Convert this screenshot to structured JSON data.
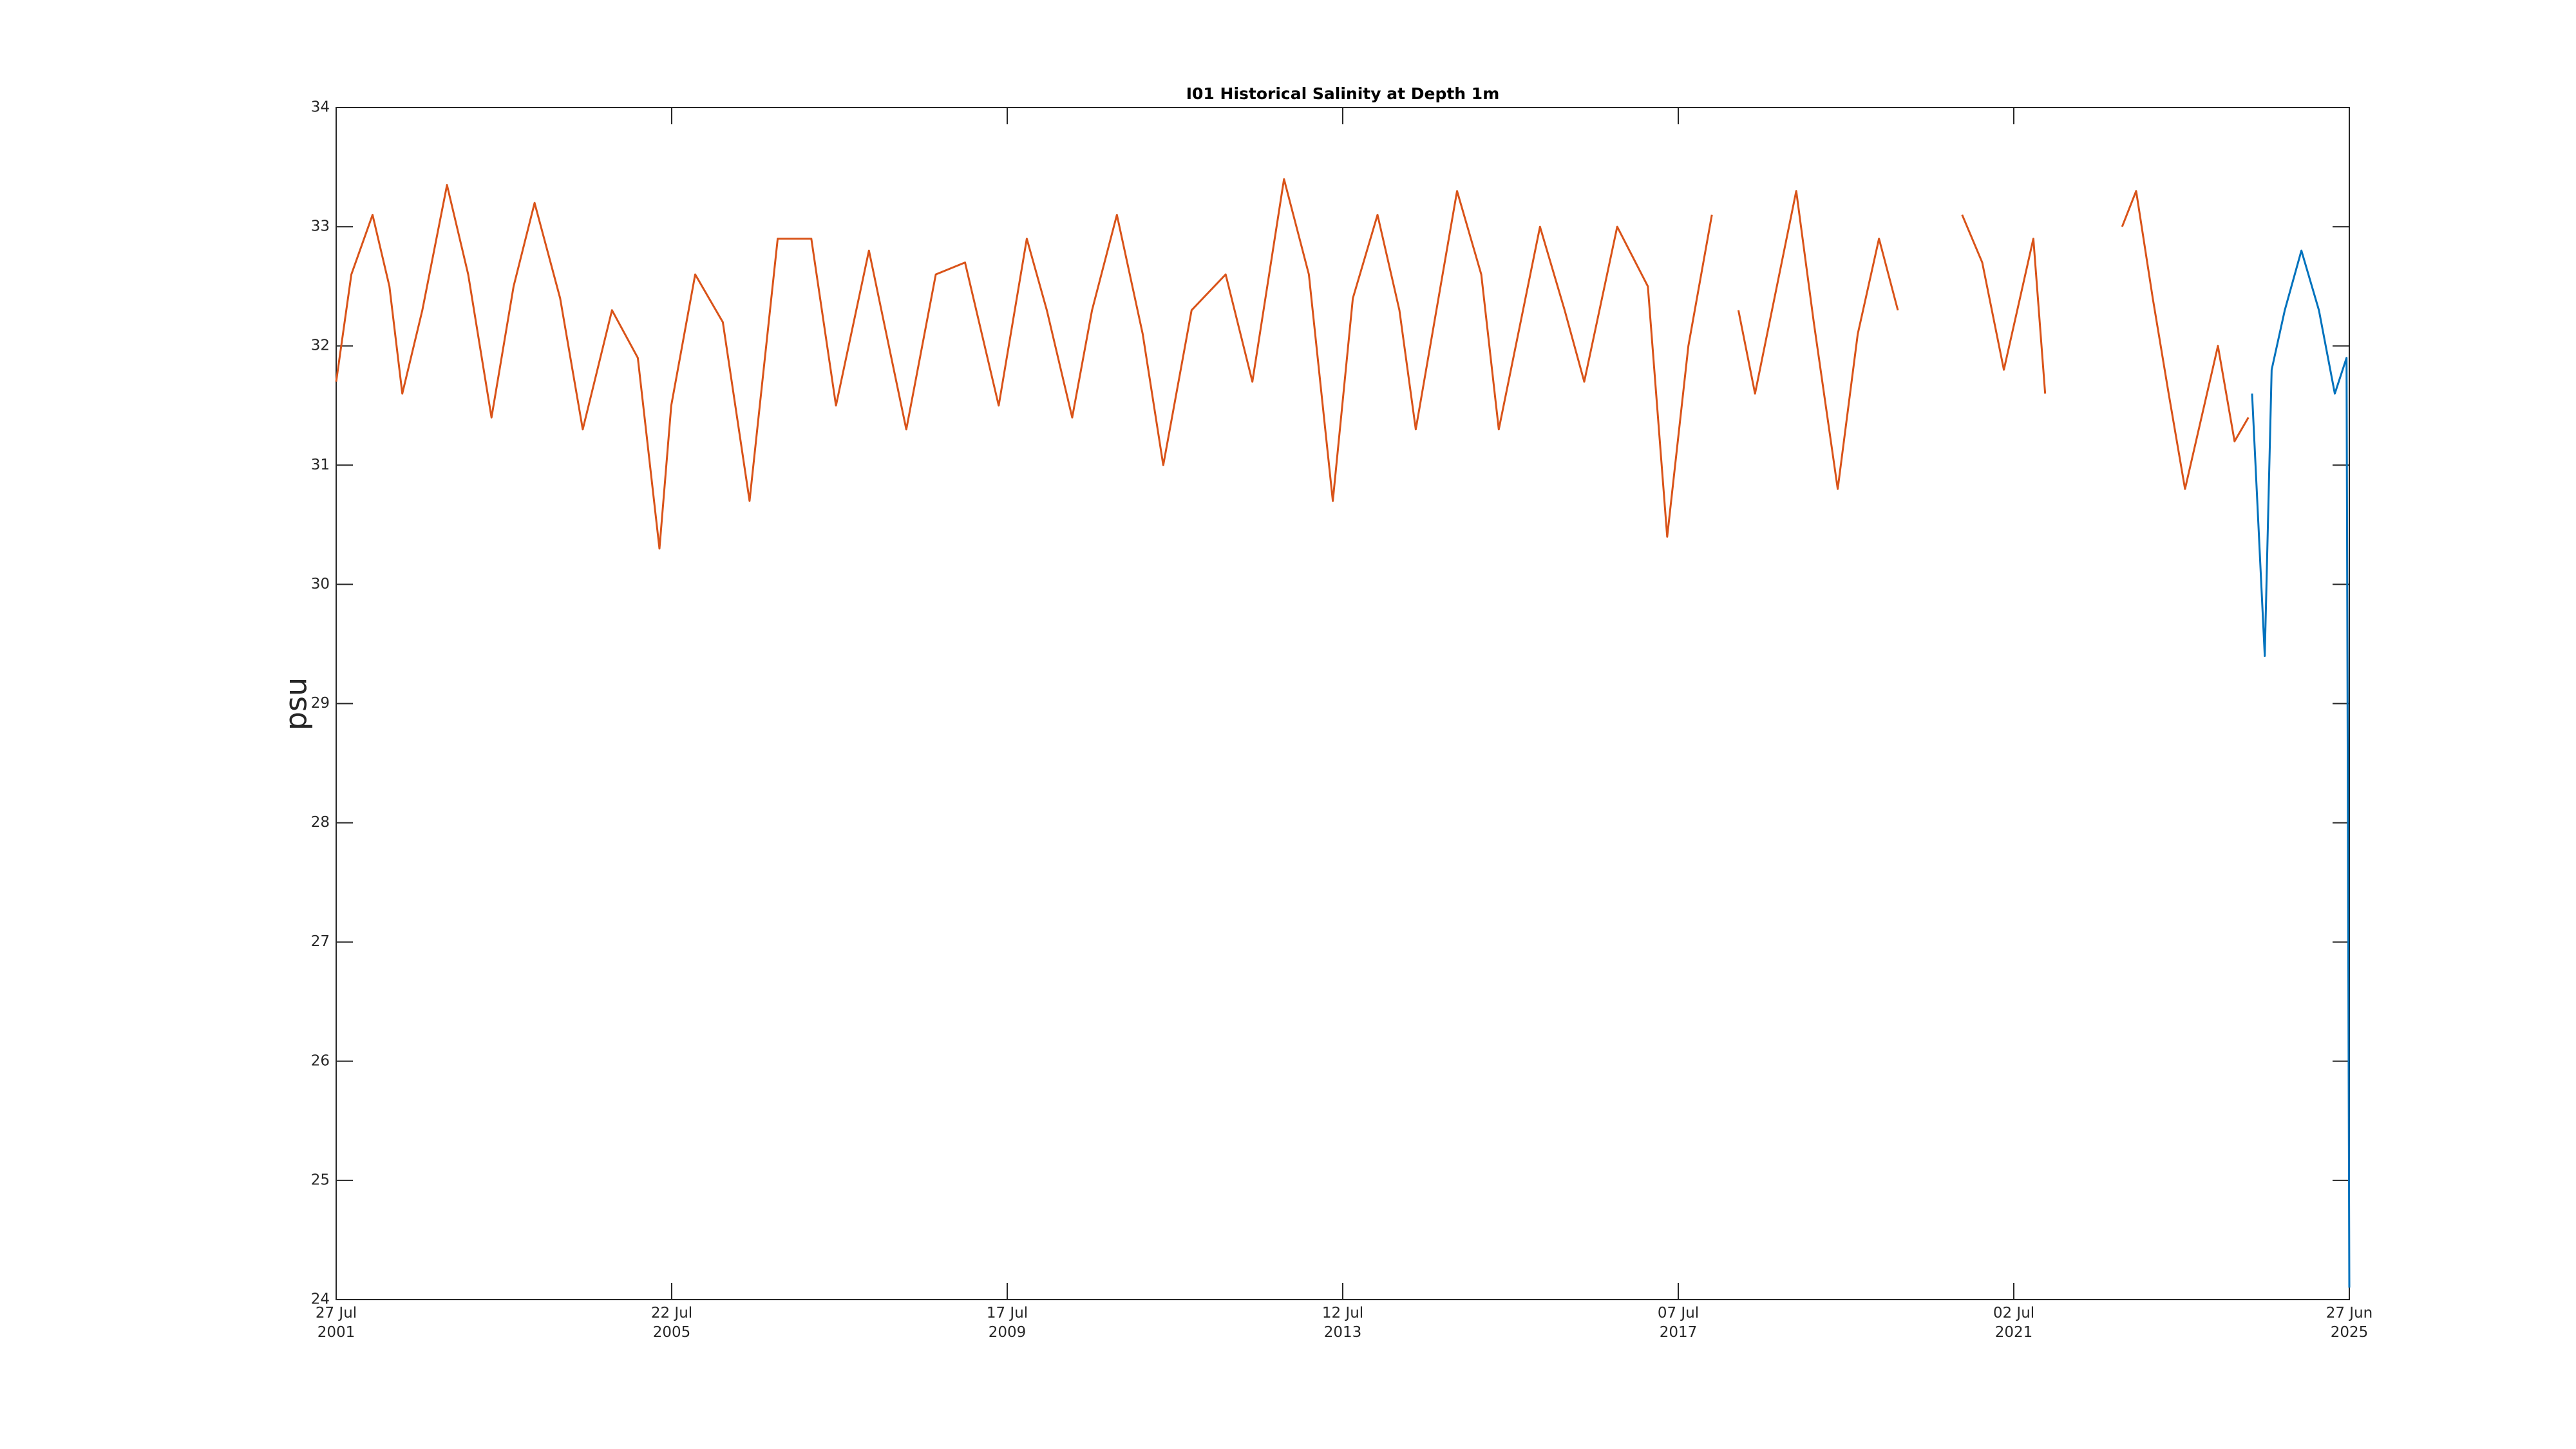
{
  "chart_data": {
    "type": "line",
    "title": "I01 Historical Salinity at Depth 1m",
    "y_label": "psu",
    "xlim": [
      "2001-07-27",
      "2025-06-27"
    ],
    "xticks": [
      {
        "value": "2001-07-27",
        "label": [
          "27 Jul",
          "2001"
        ]
      },
      {
        "value": "2005-07-22",
        "label": [
          "22 Jul",
          "2005"
        ]
      },
      {
        "value": "2009-07-17",
        "label": [
          "17 Jul",
          "2009"
        ]
      },
      {
        "value": "2013-07-12",
        "label": [
          "12 Jul",
          "2013"
        ]
      },
      {
        "value": "2017-07-07",
        "label": [
          "07 Jul",
          "2017"
        ]
      },
      {
        "value": "2021-07-02",
        "label": [
          "02 Jul",
          "2021"
        ]
      },
      {
        "value": "2025-06-27",
        "label": [
          "27 Jun",
          "2025"
        ]
      }
    ],
    "ylim": [
      24,
      34
    ],
    "yticks": [
      24,
      25,
      26,
      27,
      28,
      29,
      30,
      31,
      32,
      33,
      34
    ],
    "series": [
      {
        "color": "#d95319",
        "x": [
          "2001-07-27",
          "2001-10-01",
          "2002-01-01",
          "2002-03-15",
          "2002-05-10",
          "2002-08-05",
          "2002-11-20",
          "2003-02-20",
          "2003-06-01",
          "2003-09-05",
          "2003-12-05",
          "2004-03-25",
          "2004-07-01",
          "2004-11-05",
          "2005-02-25",
          "2005-05-30",
          "2005-07-20",
          "2005-11-01",
          "2006-03-01",
          "2006-06-25",
          "2006-10-25",
          "2007-03-20",
          "2007-07-05",
          "2007-11-25",
          "2008-05-05",
          "2008-09-10",
          "2009-01-15",
          "2009-06-10",
          "2009-10-10",
          "2010-01-05",
          "2010-04-25",
          "2010-07-20",
          "2010-11-05",
          "2011-02-25",
          "2011-05-25",
          "2011-09-25",
          "2012-02-20",
          "2012-06-15",
          "2012-10-30",
          "2013-02-15",
          "2013-05-30",
          "2013-08-25",
          "2013-12-10",
          "2014-03-15",
          "2014-05-25",
          "2014-11-20",
          "2015-03-05",
          "2015-05-20",
          "2015-11-15",
          "2016-03-01",
          "2016-05-25",
          "2016-10-15",
          "2017-02-25",
          "2017-05-20",
          "2017-08-20",
          "2017-11-30",
          "2018-02-15",
          "2018-03-25",
          "2018-06-05",
          "2018-12-01",
          "2019-02-15",
          "2019-05-30",
          "2019-08-25",
          "2019-11-25",
          "2020-02-15",
          "2020-08-01",
          "2020-11-20",
          "2021-02-15",
          "2021-05-20",
          "2021-09-25",
          "2021-11-15",
          "2022-06-01",
          "2022-10-15",
          "2022-12-15",
          "2023-02-25",
          "2023-05-05",
          "2023-07-15",
          "2023-12-05",
          "2024-02-15",
          "2024-04-15"
        ],
        "values": [
          31.7,
          32.6,
          33.1,
          32.5,
          31.6,
          32.3,
          33.35,
          32.6,
          31.4,
          32.5,
          33.2,
          32.4,
          31.3,
          32.3,
          31.9,
          30.3,
          31.5,
          32.6,
          32.2,
          30.7,
          32.9,
          32.9,
          31.5,
          32.8,
          31.3,
          32.6,
          32.7,
          31.5,
          32.9,
          32.3,
          31.4,
          32.3,
          33.1,
          32.1,
          31.0,
          32.3,
          32.6,
          31.7,
          33.4,
          32.6,
          30.7,
          32.4,
          33.1,
          32.3,
          31.3,
          33.3,
          32.6,
          31.3,
          33.0,
          32.3,
          31.7,
          33.0,
          32.5,
          30.4,
          32.0,
          33.1,
          null,
          32.3,
          31.6,
          33.3,
          32.2,
          30.8,
          32.1,
          32.9,
          32.3,
          null,
          33.1,
          32.7,
          31.8,
          32.9,
          31.6,
          null,
          33.0,
          33.3,
          32.4,
          31.6,
          30.8,
          32.0,
          31.2,
          31.4
        ]
      },
      {
        "color": "#0072bd",
        "x": [
          "2024-05-01",
          "2024-06-25",
          "2024-07-25",
          "2024-09-20",
          "2024-12-01",
          "2025-02-15",
          "2025-04-25",
          "2025-06-15",
          "2025-06-27"
        ],
        "values": [
          31.6,
          29.4,
          31.8,
          32.3,
          32.8,
          32.3,
          31.6,
          31.9,
          24.1
        ]
      }
    ]
  }
}
